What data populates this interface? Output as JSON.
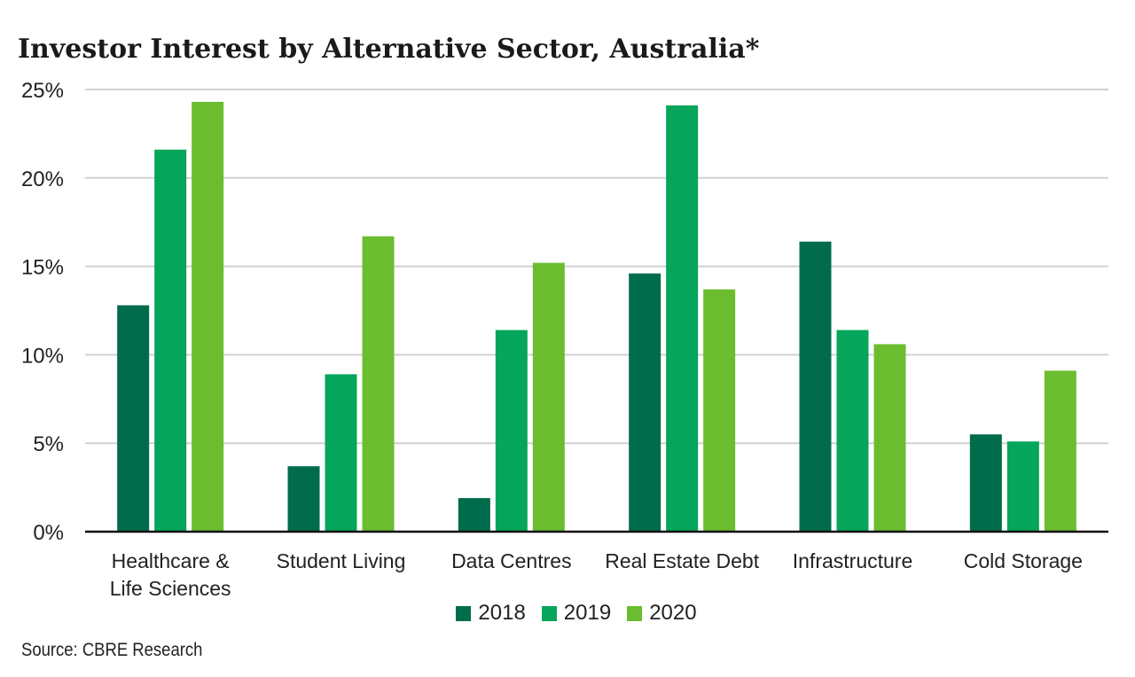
{
  "chart_data": {
    "type": "bar",
    "title": "Investor Interest by Alternative Sector, Australia*",
    "categories": [
      [
        "Healthcare &",
        "Life Sciences"
      ],
      [
        "Student Living"
      ],
      [
        "Data Centres"
      ],
      [
        "Real Estate Debt"
      ],
      [
        "Infrastructure"
      ],
      [
        "Cold Storage"
      ]
    ],
    "series": [
      {
        "name": "2018",
        "color": "#016c4c",
        "values": [
          12.8,
          3.7,
          1.9,
          14.6,
          16.4,
          5.5
        ]
      },
      {
        "name": "2019",
        "color": "#05a55b",
        "values": [
          21.6,
          8.9,
          11.4,
          24.1,
          11.4,
          5.1
        ]
      },
      {
        "name": "2020",
        "color": "#6bbd2f",
        "values": [
          24.3,
          16.7,
          15.2,
          13.7,
          10.6,
          9.1
        ]
      }
    ],
    "yticks": [
      "0%",
      "5%",
      "10%",
      "15%",
      "20%",
      "25%"
    ],
    "ylim": [
      0,
      25
    ],
    "grid": true,
    "legend": "bottom-center",
    "source": "Source: CBRE Research"
  }
}
